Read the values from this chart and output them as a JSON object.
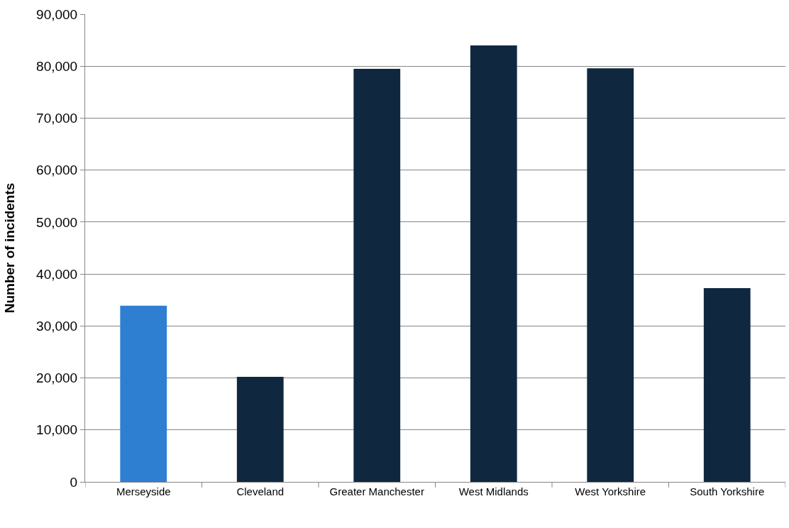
{
  "chart_data": {
    "type": "bar",
    "ylabel": "Number of incidents",
    "categories": [
      "Merseyside",
      "Cleveland",
      "Greater Manchester",
      "West Midlands",
      "West Yorkshire",
      "South Yorkshire"
    ],
    "values": [
      33900,
      20200,
      79500,
      84000,
      79600,
      37300
    ],
    "colors": [
      "#2e7fd2",
      "#10283f",
      "#10283f",
      "#10283f",
      "#10283f",
      "#10283f"
    ],
    "ylim": [
      0,
      90000
    ],
    "yticks": [
      {
        "value": 0,
        "label": "0"
      },
      {
        "value": 10000,
        "label": "10,000"
      },
      {
        "value": 20000,
        "label": "20,000"
      },
      {
        "value": 30000,
        "label": "30,000"
      },
      {
        "value": 40000,
        "label": "40,000"
      },
      {
        "value": 50000,
        "label": "50,000"
      },
      {
        "value": 60000,
        "label": "60,000"
      },
      {
        "value": 70000,
        "label": "70,000"
      },
      {
        "value": 80000,
        "label": "80,000"
      },
      {
        "value": 90000,
        "label": "90,000"
      }
    ],
    "grid": "y"
  }
}
